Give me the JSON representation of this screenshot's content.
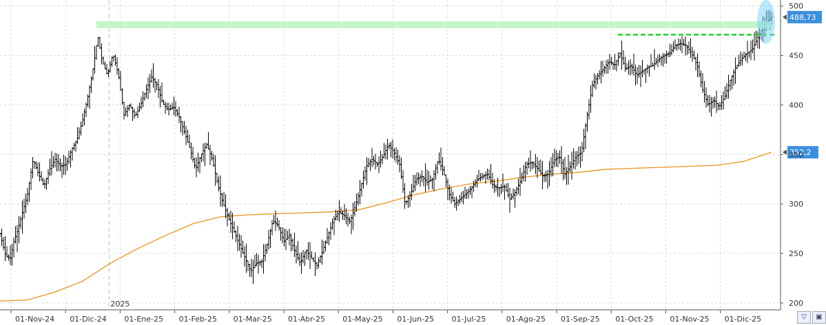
{
  "chart_data": {
    "type": "ohlc",
    "year_marker": "2025",
    "x_ticks": [
      "01-Nov-24",
      "01-Dic-24",
      "01-Ene-25",
      "01-Feb-25",
      "01-Mar-25",
      "01-Abr-25",
      "01-May-25",
      "01-Jun-25",
      "01-Jul-25",
      "01-Ago-25",
      "01-Sep-25",
      "01-Oct-25",
      "01-Nov-25",
      "01-Dic-25"
    ],
    "y_ticks": [
      "500",
      "450",
      "400",
      "350",
      "300",
      "250",
      "200"
    ],
    "ylim": [
      193,
      506
    ],
    "grid": true,
    "last_price_label": "488,73",
    "ma_label": "352,2",
    "resistance_level": 481,
    "breakout_level": 471,
    "price_anchors": [
      [
        0,
        270
      ],
      [
        8,
        248
      ],
      [
        15,
        245
      ],
      [
        20,
        262
      ],
      [
        25,
        272
      ],
      [
        32,
        290
      ],
      [
        40,
        310
      ],
      [
        48,
        345
      ],
      [
        56,
        330
      ],
      [
        64,
        318
      ],
      [
        72,
        335
      ],
      [
        80,
        345
      ],
      [
        88,
        338
      ],
      [
        96,
        340
      ],
      [
        104,
        355
      ],
      [
        112,
        365
      ],
      [
        120,
        385
      ],
      [
        128,
        410
      ],
      [
        136,
        440
      ],
      [
        142,
        470
      ],
      [
        148,
        445
      ],
      [
        156,
        430
      ],
      [
        164,
        452
      ],
      [
        172,
        430
      ],
      [
        180,
        390
      ],
      [
        188,
        400
      ],
      [
        196,
        388
      ],
      [
        204,
        400
      ],
      [
        212,
        415
      ],
      [
        220,
        428
      ],
      [
        228,
        420
      ],
      [
        236,
        402
      ],
      [
        244,
        395
      ],
      [
        252,
        398
      ],
      [
        260,
        388
      ],
      [
        268,
        372
      ],
      [
        276,
        355
      ],
      [
        284,
        335
      ],
      [
        292,
        350
      ],
      [
        300,
        360
      ],
      [
        308,
        345
      ],
      [
        316,
        320
      ],
      [
        324,
        300
      ],
      [
        332,
        285
      ],
      [
        340,
        272
      ],
      [
        348,
        258
      ],
      [
        356,
        245
      ],
      [
        364,
        232
      ],
      [
        372,
        240
      ],
      [
        380,
        242
      ],
      [
        388,
        260
      ],
      [
        396,
        283
      ],
      [
        404,
        278
      ],
      [
        412,
        262
      ],
      [
        420,
        268
      ],
      [
        428,
        252
      ],
      [
        436,
        240
      ],
      [
        444,
        254
      ],
      [
        452,
        245
      ],
      [
        460,
        238
      ],
      [
        468,
        252
      ],
      [
        476,
        268
      ],
      [
        484,
        284
      ],
      [
        492,
        292
      ],
      [
        500,
        288
      ],
      [
        508,
        282
      ],
      [
        516,
        298
      ],
      [
        524,
        318
      ],
      [
        532,
        338
      ],
      [
        540,
        345
      ],
      [
        548,
        340
      ],
      [
        556,
        348
      ],
      [
        564,
        360
      ],
      [
        572,
        352
      ],
      [
        580,
        340
      ],
      [
        588,
        300
      ],
      [
        596,
        310
      ],
      [
        604,
        325
      ],
      [
        612,
        328
      ],
      [
        620,
        322
      ],
      [
        628,
        325
      ],
      [
        636,
        345
      ],
      [
        644,
        332
      ],
      [
        652,
        310
      ],
      [
        660,
        300
      ],
      [
        668,
        305
      ],
      [
        676,
        310
      ],
      [
        684,
        316
      ],
      [
        692,
        324
      ],
      [
        700,
        328
      ],
      [
        708,
        330
      ],
      [
        716,
        318
      ],
      [
        724,
        316
      ],
      [
        732,
        318
      ],
      [
        740,
        305
      ],
      [
        748,
        312
      ],
      [
        756,
        324
      ],
      [
        764,
        340
      ],
      [
        772,
        342
      ],
      [
        780,
        336
      ],
      [
        788,
        328
      ],
      [
        796,
        330
      ],
      [
        804,
        344
      ],
      [
        812,
        348
      ],
      [
        820,
        330
      ],
      [
        828,
        338
      ],
      [
        836,
        348
      ],
      [
        844,
        352
      ],
      [
        852,
        388
      ],
      [
        860,
        420
      ],
      [
        868,
        430
      ],
      [
        876,
        436
      ],
      [
        884,
        444
      ],
      [
        892,
        440
      ],
      [
        900,
        452
      ],
      [
        908,
        436
      ],
      [
        916,
        440
      ],
      [
        924,
        430
      ],
      [
        932,
        434
      ],
      [
        940,
        438
      ],
      [
        948,
        440
      ],
      [
        956,
        446
      ],
      [
        964,
        450
      ],
      [
        972,
        452
      ],
      [
        980,
        460
      ],
      [
        988,
        462
      ],
      [
        996,
        460
      ],
      [
        1004,
        452
      ],
      [
        1012,
        440
      ],
      [
        1020,
        415
      ],
      [
        1028,
        400
      ],
      [
        1036,
        405
      ],
      [
        1044,
        398
      ],
      [
        1052,
        408
      ],
      [
        1060,
        425
      ],
      [
        1068,
        438
      ],
      [
        1076,
        446
      ],
      [
        1084,
        452
      ],
      [
        1092,
        456
      ],
      [
        1100,
        468
      ],
      [
        1108,
        480
      ],
      [
        1116,
        486
      ],
      [
        1120,
        488.73
      ]
    ],
    "ma_anchors": [
      [
        0,
        202
      ],
      [
        40,
        203
      ],
      [
        80,
        211
      ],
      [
        120,
        222
      ],
      [
        160,
        240
      ],
      [
        200,
        255
      ],
      [
        240,
        268
      ],
      [
        280,
        280
      ],
      [
        320,
        287
      ],
      [
        360,
        289
      ],
      [
        400,
        290
      ],
      [
        440,
        291
      ],
      [
        480,
        292
      ],
      [
        520,
        294
      ],
      [
        560,
        301
      ],
      [
        600,
        309
      ],
      [
        640,
        315
      ],
      [
        680,
        320
      ],
      [
        720,
        323
      ],
      [
        760,
        327
      ],
      [
        800,
        330
      ],
      [
        840,
        332
      ],
      [
        880,
        335
      ],
      [
        920,
        336
      ],
      [
        960,
        337
      ],
      [
        1000,
        338
      ],
      [
        1040,
        339
      ],
      [
        1080,
        343
      ],
      [
        1120,
        352.2
      ]
    ]
  }
}
